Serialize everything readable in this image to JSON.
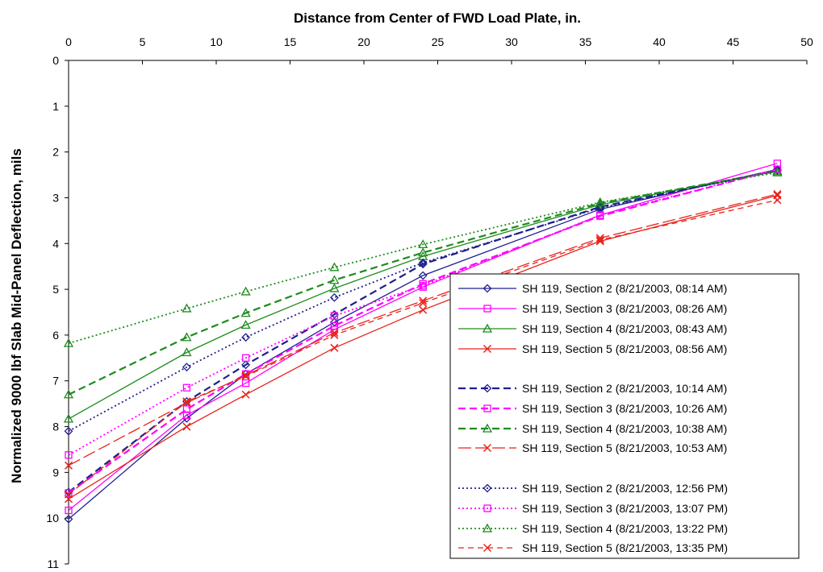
{
  "chart_data": {
    "type": "line",
    "xlabel": "Distance from Center of FWD Load Plate, in.",
    "ylabel": "Normalized 9000 lbf Slab Mid-Panel Deflection, mils",
    "xlim": [
      0,
      50
    ],
    "ylim": [
      0,
      11
    ],
    "y_inverted": true,
    "x_axis_position": "top",
    "xticks": [
      0,
      5,
      10,
      15,
      20,
      25,
      30,
      35,
      40,
      45,
      50
    ],
    "yticks": [
      0,
      1,
      2,
      3,
      4,
      5,
      6,
      7,
      8,
      9,
      10,
      11
    ],
    "grid": false,
    "legend_position": "bottom-right",
    "x": [
      0,
      8,
      12,
      18,
      24,
      36,
      48
    ],
    "series": [
      {
        "name": "SH 119, Section 2 (8/21/2003,  08:14 AM)",
        "values": [
          10.02,
          7.82,
          6.85,
          5.72,
          4.7,
          3.25,
          2.38
        ],
        "color": "#1f1f8f",
        "dash": "solid",
        "marker": "diamond"
      },
      {
        "name": "SH 119, Section 3 (8/21/2003,  08:26 AM)",
        "values": [
          9.83,
          7.75,
          7.05,
          5.88,
          4.95,
          3.38,
          2.25
        ],
        "color": "#ff00ff",
        "dash": "solid",
        "marker": "square"
      },
      {
        "name": "SH 119, Section 4 (8/21/2003,  08:43 AM)",
        "values": [
          7.83,
          6.38,
          5.78,
          4.98,
          4.28,
          3.15,
          2.42
        ],
        "color": "#1e8c1e",
        "dash": "solid",
        "marker": "triangle"
      },
      {
        "name": "SH 119, Section 5 (8/21/2003,  08:56 AM)",
        "values": [
          9.58,
          8.0,
          7.3,
          6.28,
          5.45,
          3.95,
          2.95
        ],
        "color": "#e8231c",
        "dash": "solid",
        "marker": "x"
      },
      {
        "name": "SH 119, Section 2 (8/21/2003,  10:14 AM)",
        "values": [
          9.43,
          7.45,
          6.65,
          5.55,
          4.45,
          3.2,
          2.4
        ],
        "color": "#1f1f8f",
        "dash": "dash",
        "marker": "diamond"
      },
      {
        "name": "SH 119, Section 3 (8/21/2003,  10:26 AM)",
        "values": [
          9.45,
          7.62,
          6.85,
          5.8,
          4.88,
          3.4,
          2.38
        ],
        "color": "#ff00ff",
        "dash": "dash",
        "marker": "square"
      },
      {
        "name": "SH 119, Section 4 (8/21/2003,  10:38 AM)",
        "values": [
          7.3,
          6.05,
          5.52,
          4.8,
          4.2,
          3.12,
          2.42
        ],
        "color": "#1e8c1e",
        "dash": "dash",
        "marker": "triangle"
      },
      {
        "name": "SH 119, Section 5 (8/21/2003,  10:53 AM)",
        "values": [
          8.85,
          7.48,
          6.88,
          5.95,
          5.25,
          3.88,
          2.92
        ],
        "color": "#e8231c",
        "dash": "longdash",
        "marker": "x"
      },
      {
        "name": "SH 119, Section 2 (8/21/2003,  12:56 PM)",
        "values": [
          8.1,
          6.7,
          6.05,
          5.18,
          4.42,
          3.22,
          2.4
        ],
        "color": "#1f1f8f",
        "dash": "dot",
        "marker": "diamond"
      },
      {
        "name": "SH 119, Section 3 (8/21/2003,  13:07 PM)",
        "values": [
          8.62,
          7.15,
          6.5,
          5.58,
          4.92,
          3.38,
          2.38
        ],
        "color": "#ff00ff",
        "dash": "dot",
        "marker": "square"
      },
      {
        "name": "SH 119, Section 4 (8/21/2003,  13:22 PM)",
        "values": [
          6.18,
          5.42,
          5.05,
          4.52,
          4.02,
          3.1,
          2.45
        ],
        "color": "#1e8c1e",
        "dash": "dot",
        "marker": "triangle"
      },
      {
        "name": "SH 119, Section 5 (8/21/2003,  13:35 PM)",
        "values": [
          9.48,
          7.45,
          6.9,
          6.0,
          5.3,
          3.92,
          3.05
        ],
        "color": "#e8231c",
        "dash": "shortdash",
        "marker": "x"
      }
    ]
  }
}
